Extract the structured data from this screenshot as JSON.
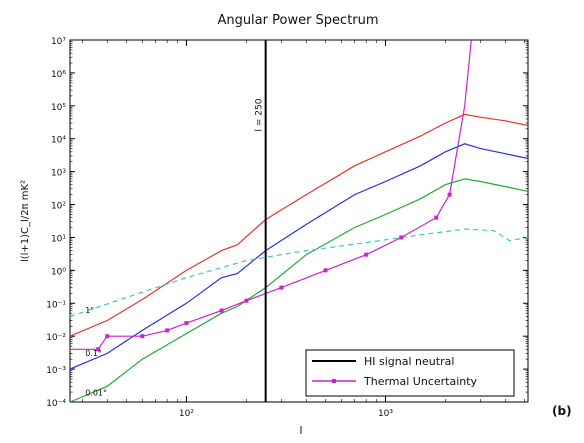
{
  "chart_data": {
    "type": "line",
    "title": "Angular Power Spectrum",
    "xlabel": "l",
    "ylabel": "l(l+1)C_l/2π mK²",
    "panel_label": "(b)",
    "xscale": "log",
    "yscale": "log",
    "xlim": [
      26,
      5200
    ],
    "ylim": [
      0.0001,
      10000000
    ],
    "x_ticks": [
      {
        "value": 100,
        "label": "10²"
      },
      {
        "value": 1000,
        "label": "10³"
      }
    ],
    "y_ticks": [
      {
        "value": 0.0001,
        "label": "10⁻⁴"
      },
      {
        "value": 0.001,
        "label": "10⁻³"
      },
      {
        "value": 0.01,
        "label": "10⁻²"
      },
      {
        "value": 0.1,
        "label": "10⁻¹"
      },
      {
        "value": 1,
        "label": "10⁰"
      },
      {
        "value": 10,
        "label": "10¹"
      },
      {
        "value": 100,
        "label": "10²"
      },
      {
        "value": 1000,
        "label": "10³"
      },
      {
        "value": 10000,
        "label": "10⁴"
      },
      {
        "value": 100000,
        "label": "10⁵"
      },
      {
        "value": 1000000,
        "label": "10⁶"
      },
      {
        "value": 10000000,
        "label": "10⁷"
      }
    ],
    "vline": {
      "x": 250,
      "label": "l = 250"
    },
    "series": [
      {
        "name": "",
        "color": "#e8332e",
        "style": "solid",
        "x": [
          26,
          40,
          60,
          100,
          150,
          180,
          250,
          400,
          700,
          1000,
          1500,
          2000,
          2500,
          3000,
          4000,
          5200
        ],
        "y": [
          0.01,
          0.03,
          0.13,
          1,
          4,
          6,
          35,
          200,
          1500,
          4000,
          12000,
          30000,
          55000,
          45000,
          35000,
          25000
        ]
      },
      {
        "name": "",
        "color": "#2233dd",
        "style": "solid",
        "x": [
          26,
          40,
          60,
          100,
          150,
          180,
          250,
          400,
          700,
          1000,
          1500,
          2000,
          2500,
          3000,
          4000,
          5200
        ],
        "y": [
          0.001,
          0.003,
          0.015,
          0.1,
          0.6,
          0.8,
          4,
          25,
          200,
          500,
          1500,
          4000,
          7000,
          5000,
          3500,
          2500
        ]
      },
      {
        "name": "",
        "color": "#22aa33",
        "style": "solid",
        "x": [
          26,
          40,
          60,
          100,
          150,
          180,
          250,
          400,
          700,
          1000,
          1500,
          2000,
          2500,
          3000,
          4000,
          5200
        ],
        "y": [
          0.0001,
          0.0003,
          0.002,
          0.012,
          0.05,
          0.08,
          0.3,
          3,
          20,
          50,
          150,
          400,
          600,
          500,
          350,
          250
        ]
      },
      {
        "name": "",
        "color": "#33cccc",
        "style": "dashed",
        "x": [
          26,
          50,
          100,
          200,
          400,
          800,
          1500,
          2500,
          3500,
          4200,
          5200
        ],
        "y": [
          0.04,
          0.15,
          0.6,
          2,
          4,
          7,
          12,
          18,
          16,
          8,
          10
        ]
      },
      {
        "name": "HI signal neutral",
        "color": "#000000",
        "style": "legend-only"
      },
      {
        "name": "Thermal Uncertainty",
        "color": "#cc22cc",
        "style": "solid-marker",
        "x": [
          26,
          36,
          40,
          60,
          80,
          100,
          150,
          200,
          300,
          500,
          800,
          1200,
          1800,
          2100,
          2500,
          2700
        ],
        "y": [
          0.004,
          0.004,
          0.01,
          0.01,
          0.015,
          0.025,
          0.06,
          0.12,
          0.3,
          1,
          3,
          10,
          40,
          200,
          100000,
          10000000
        ]
      }
    ],
    "annotations": [
      {
        "text": "1°",
        "x": 31,
        "y": 0.05
      },
      {
        "text": "0.1°",
        "x": 31,
        "y": 0.0025
      },
      {
        "text": "0.01°",
        "x": 31,
        "y": 0.00016
      }
    ],
    "legend": {
      "position": "bottom-right"
    },
    "grid": false
  }
}
